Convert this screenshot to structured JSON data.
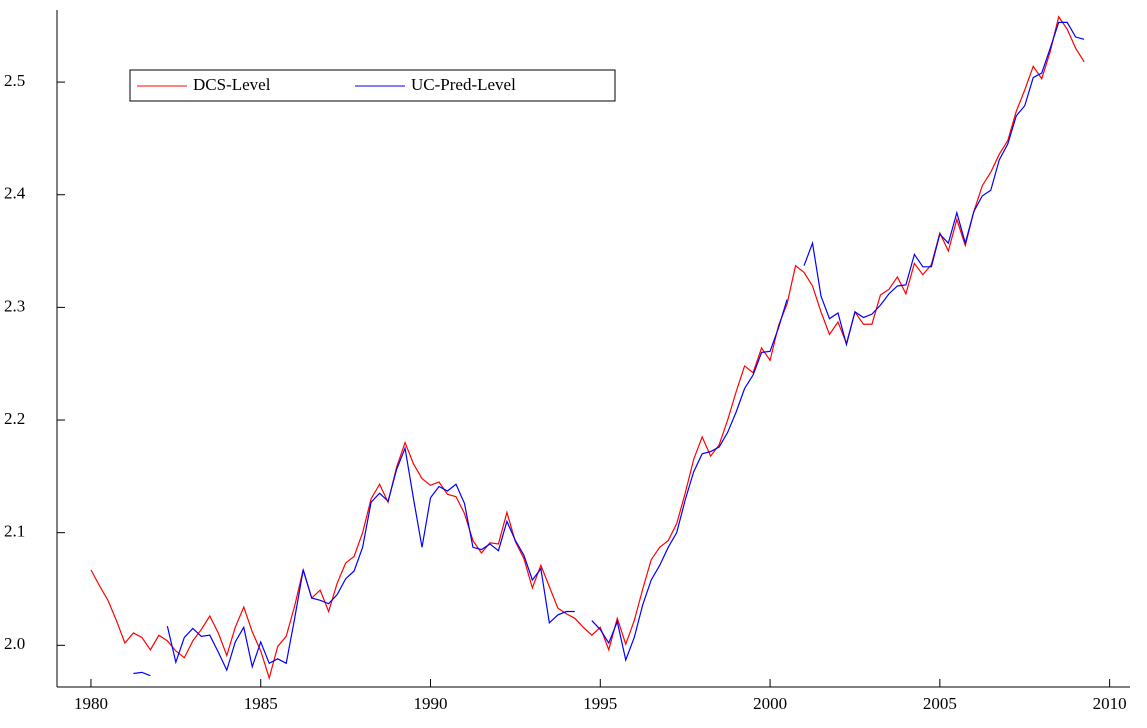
{
  "chart_data": {
    "type": "line",
    "x": [
      1980,
      1980.25,
      1980.5,
      1980.75,
      1981,
      1981.25,
      1981.5,
      1981.75,
      1982,
      1982.25,
      1982.5,
      1982.75,
      1983,
      1983.25,
      1983.5,
      1983.75,
      1984,
      1984.25,
      1984.5,
      1984.75,
      1985,
      1985.25,
      1985.5,
      1985.75,
      1986,
      1986.25,
      1986.5,
      1986.75,
      1987,
      1987.25,
      1987.5,
      1987.75,
      1988,
      1988.25,
      1988.5,
      1988.75,
      1989,
      1989.25,
      1989.5,
      1989.75,
      1990,
      1990.25,
      1990.5,
      1990.75,
      1991,
      1991.25,
      1991.5,
      1991.75,
      1992,
      1992.25,
      1992.5,
      1992.75,
      1993,
      1993.25,
      1993.5,
      1993.75,
      1994,
      1994.25,
      1994.5,
      1994.75,
      1995,
      1995.25,
      1995.5,
      1995.75,
      1996,
      1996.25,
      1996.5,
      1996.75,
      1997,
      1997.25,
      1997.5,
      1997.75,
      1998,
      1998.25,
      1998.5,
      1998.75,
      1999,
      1999.25,
      1999.5,
      1999.75,
      2000,
      2000.25,
      2000.5,
      2000.75,
      2001,
      2001.25,
      2001.5,
      2001.75,
      2002,
      2002.25,
      2002.5,
      2002.75,
      2003,
      2003.25,
      2003.5,
      2003.75,
      2004,
      2004.25,
      2004.5,
      2004.75,
      2005,
      2005.25,
      2005.5,
      2005.75,
      2006,
      2006.25,
      2006.5,
      2006.75,
      2007,
      2007.25,
      2007.5,
      2007.75,
      2008,
      2008.25,
      2008.5,
      2008.75,
      2009,
      2009.25
    ],
    "series": [
      {
        "name": "DCS-Level",
        "color": "#ff0000",
        "values": [
          2.067,
          2.053,
          2.04,
          2.022,
          2.002,
          2.011,
          2.007,
          1.996,
          2.009,
          2.004,
          1.995,
          1.989,
          2.004,
          2.014,
          2.026,
          2.011,
          1.991,
          2.016,
          2.034,
          2.012,
          1.995,
          1.971,
          1.999,
          2.008,
          2.035,
          2.067,
          2.042,
          2.049,
          2.03,
          2.055,
          2.073,
          2.079,
          2.1,
          2.13,
          2.143,
          2.127,
          2.158,
          2.18,
          2.161,
          2.148,
          2.142,
          2.145,
          2.134,
          2.132,
          2.117,
          2.093,
          2.082,
          2.091,
          2.09,
          2.118,
          2.092,
          2.077,
          2.051,
          2.071,
          2.052,
          2.033,
          2.028,
          2.024,
          2.016,
          2.009,
          2.016,
          1.996,
          2.024,
          2.001,
          2.022,
          2.05,
          2.076,
          2.087,
          2.093,
          2.108,
          2.135,
          2.165,
          2.185,
          2.168,
          2.178,
          2.2,
          2.225,
          2.248,
          2.242,
          2.264,
          2.253,
          2.284,
          2.303,
          2.337,
          2.331,
          2.319,
          2.296,
          2.276,
          2.287,
          2.268,
          2.296,
          2.285,
          2.285,
          2.311,
          2.316,
          2.327,
          2.312,
          2.339,
          2.329,
          2.338,
          2.366,
          2.35,
          2.378,
          2.355,
          2.385,
          2.408,
          2.42,
          2.436,
          2.448,
          2.474,
          2.493,
          2.514,
          2.503,
          2.527,
          2.558,
          2.547,
          2.53,
          2.518
        ]
      },
      {
        "name": "UC-Pred-Level",
        "color": "#0000ff",
        "values": [
          null,
          null,
          null,
          null,
          null,
          1.975,
          1.976,
          1.973,
          null,
          2.017,
          1.985,
          2.007,
          2.015,
          2.008,
          2.009,
          1.994,
          1.978,
          2.003,
          2.016,
          1.981,
          2.003,
          1.984,
          1.988,
          1.984,
          2.024,
          2.067,
          2.042,
          2.04,
          2.037,
          2.045,
          2.059,
          2.066,
          2.087,
          2.127,
          2.135,
          2.128,
          2.156,
          2.175,
          2.13,
          2.087,
          2.131,
          2.141,
          2.137,
          2.143,
          2.126,
          2.087,
          2.085,
          2.09,
          2.084,
          2.11,
          2.093,
          2.08,
          2.058,
          2.068,
          2.02,
          2.027,
          2.03,
          2.03,
          null,
          2.022,
          2.014,
          2.002,
          2.021,
          1.987,
          2.007,
          2.036,
          2.058,
          2.071,
          2.087,
          2.1,
          2.129,
          2.154,
          2.17,
          2.172,
          2.176,
          2.189,
          2.207,
          2.228,
          2.24,
          2.26,
          2.261,
          2.282,
          2.307,
          null,
          2.337,
          2.357,
          2.31,
          2.29,
          2.295,
          2.267,
          2.296,
          2.291,
          2.294,
          2.302,
          2.312,
          2.319,
          2.32,
          2.347,
          2.336,
          2.336,
          2.365,
          2.357,
          2.384,
          2.357,
          2.385,
          2.399,
          2.404,
          2.431,
          2.445,
          2.47,
          2.479,
          2.504,
          2.508,
          2.53,
          2.553,
          2.553,
          2.54,
          2.538
        ]
      }
    ],
    "xlim": [
      1979,
      2010.6
    ],
    "ylim": [
      1.963,
      2.564
    ],
    "xticks": [
      1980,
      1985,
      1990,
      1995,
      2000,
      2005,
      2010
    ],
    "yticks": [
      {
        "value": 2,
        "label": "2.0"
      },
      2.1,
      2.2,
      2.3,
      2.4,
      2.5
    ],
    "legend": "upper left"
  }
}
